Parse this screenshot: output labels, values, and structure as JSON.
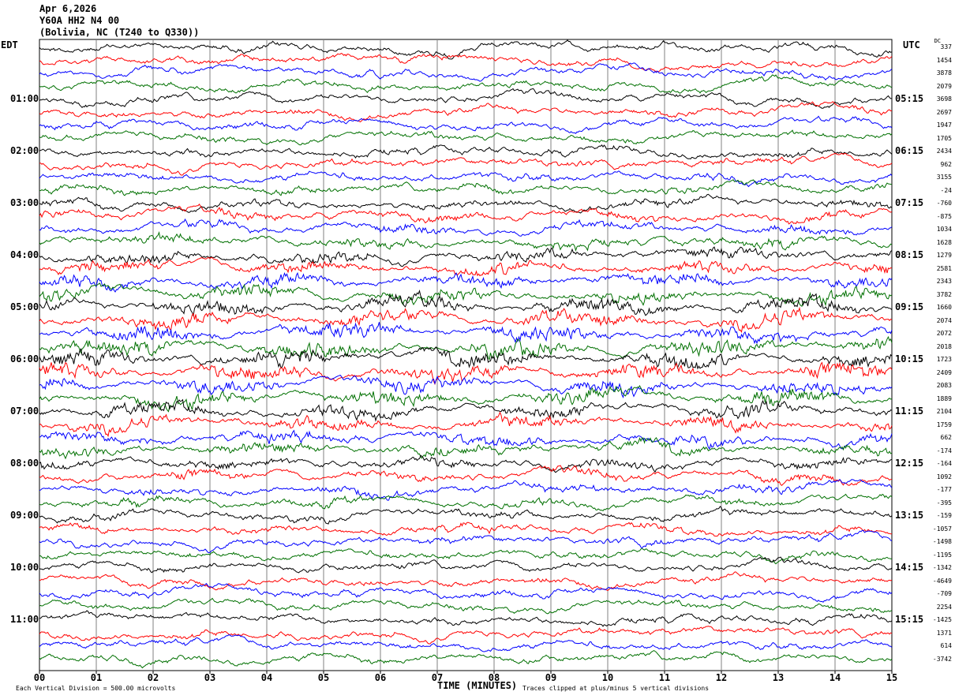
{
  "header": {
    "date": "Apr 6,2026",
    "station": "Y60A HH2 N4 00",
    "location": "(Bolivia, NC (T240 to Q330))"
  },
  "chart_data": {
    "type": "line",
    "title": "Apr 6,2026 Y60A HH2 N4 00 (Bolivia, NC (T240 to Q330))",
    "xlabel": "TIME (MINUTES)",
    "xlim": [
      0,
      15
    ],
    "x_ticks": [
      "00",
      "01",
      "02",
      "03",
      "04",
      "05",
      "06",
      "07",
      "08",
      "09",
      "10",
      "11",
      "12",
      "13",
      "14",
      "15"
    ],
    "left_axis_label": "EDT",
    "right_axis_label": "UTC",
    "left_ticks": [
      "01:00",
      "02:00",
      "03:00",
      "04:00",
      "05:00",
      "06:00",
      "07:00",
      "08:00",
      "09:00",
      "10:00",
      "11:00"
    ],
    "right_ticks": [
      "05:15",
      "06:15",
      "07:15",
      "08:15",
      "09:15",
      "10:15",
      "11:15",
      "12:15",
      "13:15",
      "14:15",
      "15:15"
    ],
    "dc_label": "DC",
    "dc_offsets": [
      "337",
      "1454",
      "3878",
      "2079",
      "3698",
      "2697",
      "1947",
      "1705",
      "2434",
      "962",
      "3155",
      "-24",
      "-760",
      "-875",
      "1034",
      "1628",
      "1279",
      "2581",
      "2343",
      "3782",
      "1660",
      "2074",
      "2072",
      "2018",
      "1723",
      "2409",
      "2083",
      "1889",
      "2104",
      "1759",
      "662",
      "-174",
      "-164",
      "1092",
      "-177",
      "-395",
      "-159",
      "-1057",
      "-1498",
      "-1195",
      "-1342",
      "-4649",
      "-709",
      "2254",
      "-1425",
      "1371",
      "614",
      "-3742"
    ],
    "trace_colors": [
      "#000000",
      "#ff0000",
      "#0000ff",
      "#007000"
    ],
    "grid": true,
    "scale_note": "Each Vertical Division =  500.00 microvolts",
    "clip_note": "Traces clipped at plus/minus 5 vertical divisions"
  }
}
